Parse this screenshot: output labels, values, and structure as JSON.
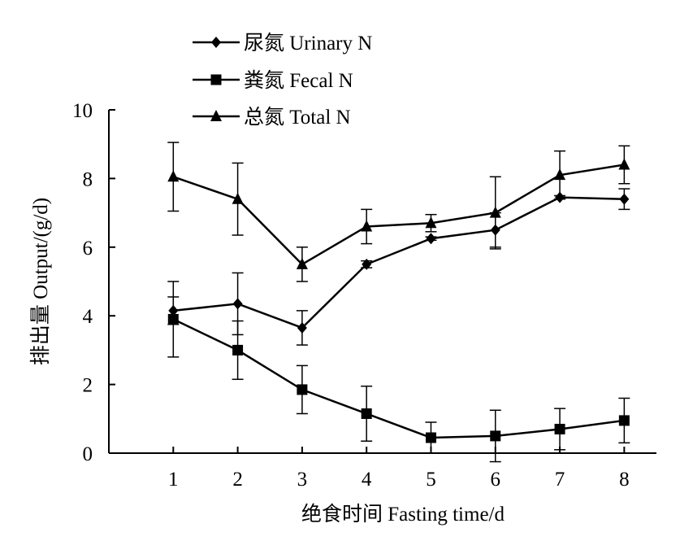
{
  "chart_data": {
    "type": "line",
    "xlabel": "绝食时间  Fasting time/d",
    "ylabel": "排出量  Output/(g/d)",
    "x": [
      1,
      2,
      3,
      4,
      5,
      6,
      7,
      8
    ],
    "xlim": [
      0,
      8.5
    ],
    "ylim": [
      0,
      10
    ],
    "yticks": [
      0,
      2,
      4,
      6,
      8,
      10
    ],
    "grid": false,
    "legend_position": "top-left",
    "series": [
      {
        "name": "尿氮  Urinary N",
        "marker": "diamond",
        "values": [
          4.15,
          4.35,
          3.65,
          5.5,
          6.25,
          6.5,
          7.45,
          7.4
        ],
        "error": [
          0.4,
          0.9,
          0.5,
          0.1,
          0.05,
          0.5,
          0.05,
          0.3
        ]
      },
      {
        "name": "粪氮  Fecal N",
        "marker": "square",
        "values": [
          3.9,
          3.0,
          1.85,
          1.15,
          0.45,
          0.5,
          0.7,
          0.95
        ],
        "error": [
          1.1,
          0.85,
          0.7,
          0.8,
          0.45,
          0.75,
          0.6,
          0.65
        ]
      },
      {
        "name": "总氮  Total N",
        "marker": "triangle",
        "values": [
          8.05,
          7.4,
          5.5,
          6.6,
          6.7,
          7.0,
          8.1,
          8.4
        ],
        "error": [
          1.0,
          1.05,
          0.5,
          0.5,
          0.25,
          1.05,
          0.7,
          0.55
        ]
      }
    ]
  }
}
